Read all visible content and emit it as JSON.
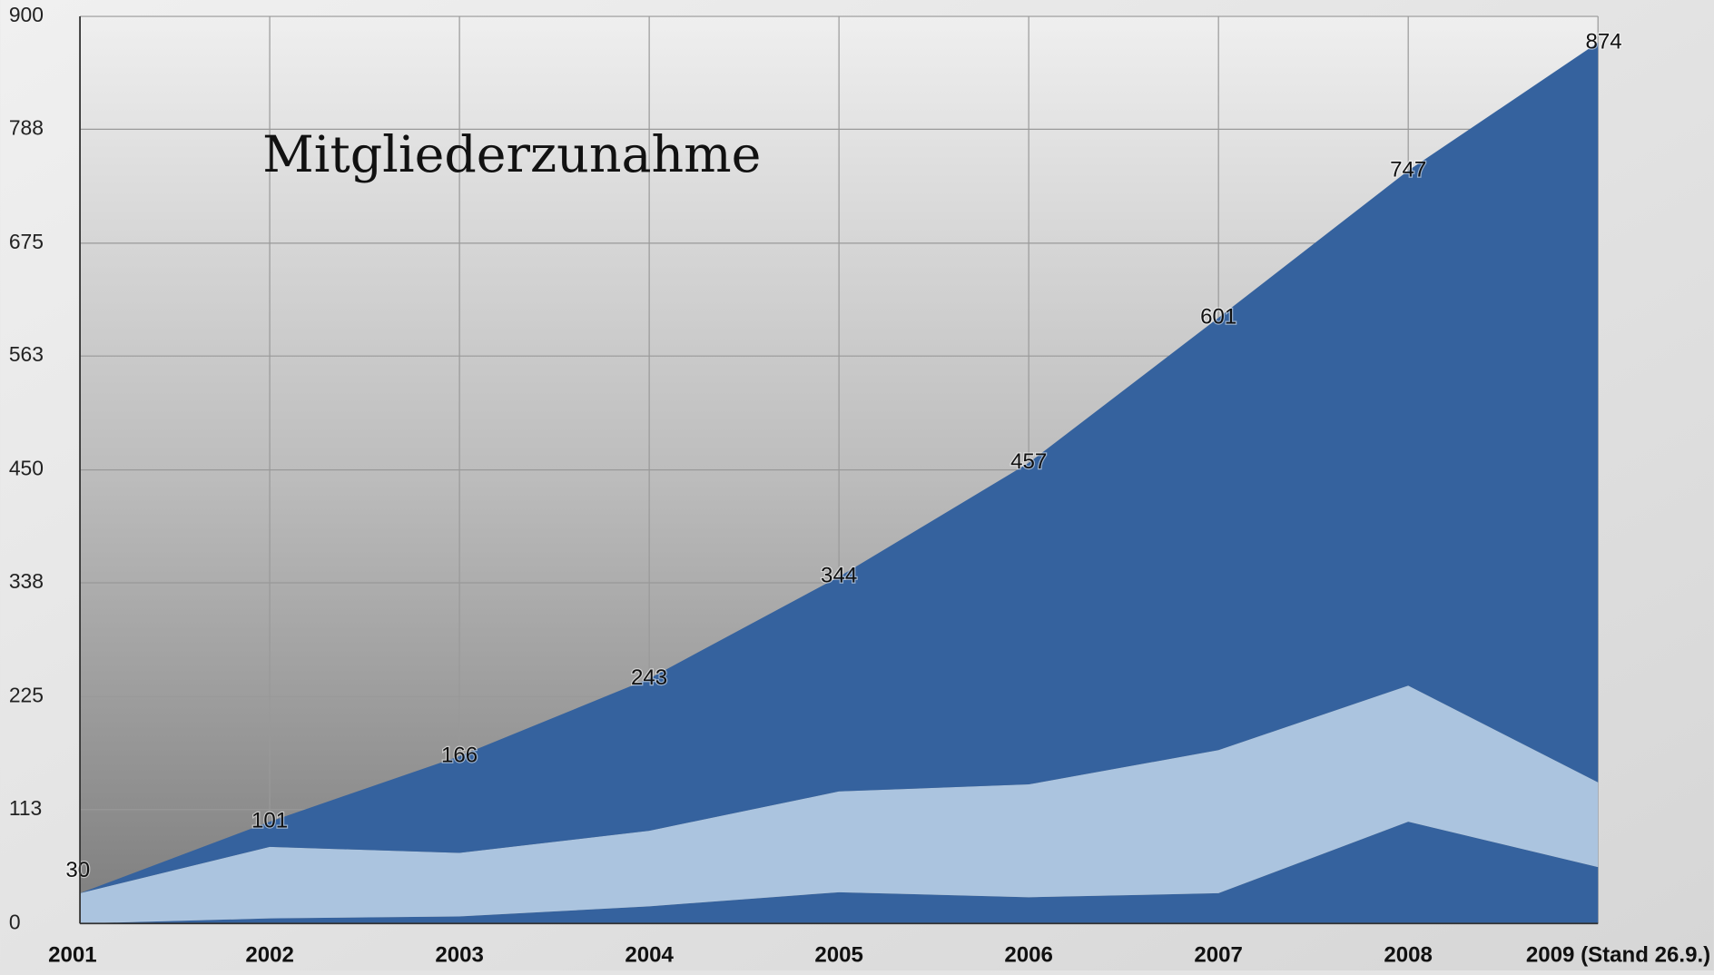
{
  "chart_data": {
    "type": "stacked_area",
    "title": "Mitgliederzunahme",
    "categories": [
      "2001",
      "2002",
      "2003",
      "2004",
      "2005",
      "2006",
      "2007",
      "2008",
      "2009 (Stand 26.9.)"
    ],
    "series": [
      {
        "color": "#35629e",
        "values": [
          0,
          5,
          7,
          17,
          31,
          26,
          30,
          101,
          56
        ]
      },
      {
        "color": "#abc4df",
        "values": [
          30,
          71,
          63,
          75,
          100,
          112,
          142,
          135,
          84
        ]
      },
      {
        "color": "#35629e",
        "values": [
          0,
          25,
          96,
          151,
          213,
          319,
          429,
          511,
          734
        ]
      }
    ],
    "totals": [
      30,
      101,
      166,
      243,
      344,
      457,
      601,
      747,
      874
    ],
    "ylim": [
      0,
      900
    ],
    "yticks": [
      0,
      113,
      225,
      338,
      450,
      563,
      675,
      788,
      900
    ],
    "grid": true
  }
}
